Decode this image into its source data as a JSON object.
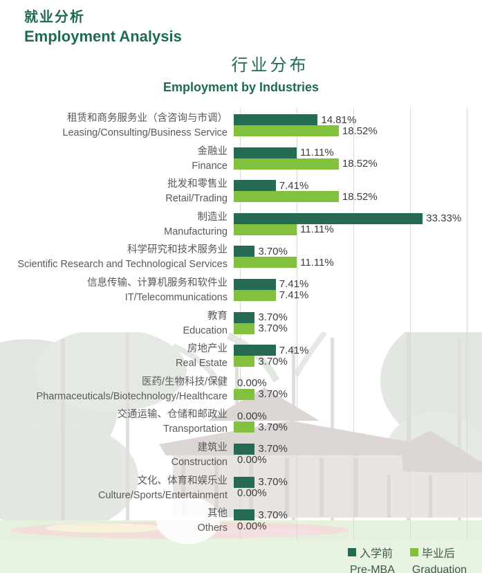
{
  "header": {
    "title_zh": "就业分析",
    "title_en": "Employment Analysis"
  },
  "section": {
    "title_zh": "行业分布",
    "title_en": "Employment by Industries"
  },
  "legend": {
    "pre": {
      "label_zh": "入学前",
      "label_en": "Pre-MBA"
    },
    "grad": {
      "label_zh": "毕业后",
      "label_en": "Graduation"
    }
  },
  "colors": {
    "header_green": "#1e6a52",
    "pre_mba_bar": "#256b53",
    "graduation_bar": "#82c13e",
    "label_gray": "#595959",
    "value_gray": "#3c3c3c",
    "legend_text": "#3d584c",
    "gridline": "#d9d9d9"
  },
  "chart_data": {
    "type": "bar",
    "orientation": "horizontal",
    "title_zh": "行业分布",
    "title_en": "Employment by Industries",
    "unit": "percent",
    "xlim": [
      0,
      40
    ],
    "gridline_step": 10,
    "grid": true,
    "legend_position": "bottom-right",
    "categories": [
      {
        "zh": "租赁和商务服务业（含咨询与市调）",
        "en": "Leasing/Consulting/Business Service"
      },
      {
        "zh": "金融业",
        "en": "Finance"
      },
      {
        "zh": "批发和零售业",
        "en": "Retail/Trading"
      },
      {
        "zh": "制造业",
        "en": "Manufacturing"
      },
      {
        "zh": "科学研究和技术服务业",
        "en": "Scientific Research and Technological Services"
      },
      {
        "zh": "信息传输、计算机服务和软件业",
        "en": "IT/Telecommunications"
      },
      {
        "zh": "教育",
        "en": "Education"
      },
      {
        "zh": "房地产业",
        "en": "Real Estate"
      },
      {
        "zh": "医药/生物科技/保健",
        "en": "Pharmaceuticals/Biotechnology/Healthcare"
      },
      {
        "zh": "交通运输、仓储和邮政业",
        "en": "Transportation"
      },
      {
        "zh": "建筑业",
        "en": "Construction"
      },
      {
        "zh": "文化、体育和娱乐业",
        "en": "Culture/Sports/Entertainment"
      },
      {
        "zh": "其他",
        "en": "Others"
      }
    ],
    "series": [
      {
        "name_zh": "入学前",
        "name_en": "Pre-MBA",
        "color": "#256b53",
        "values": [
          14.81,
          11.11,
          7.41,
          33.33,
          3.7,
          7.41,
          3.7,
          7.41,
          0.0,
          0.0,
          3.7,
          3.7,
          3.7
        ]
      },
      {
        "name_zh": "毕业后",
        "name_en": "Graduation",
        "color": "#82c13e",
        "values": [
          18.52,
          18.52,
          18.52,
          11.11,
          11.11,
          7.41,
          3.7,
          3.7,
          3.7,
          3.7,
          0.0,
          0.0,
          0.0
        ]
      }
    ]
  }
}
